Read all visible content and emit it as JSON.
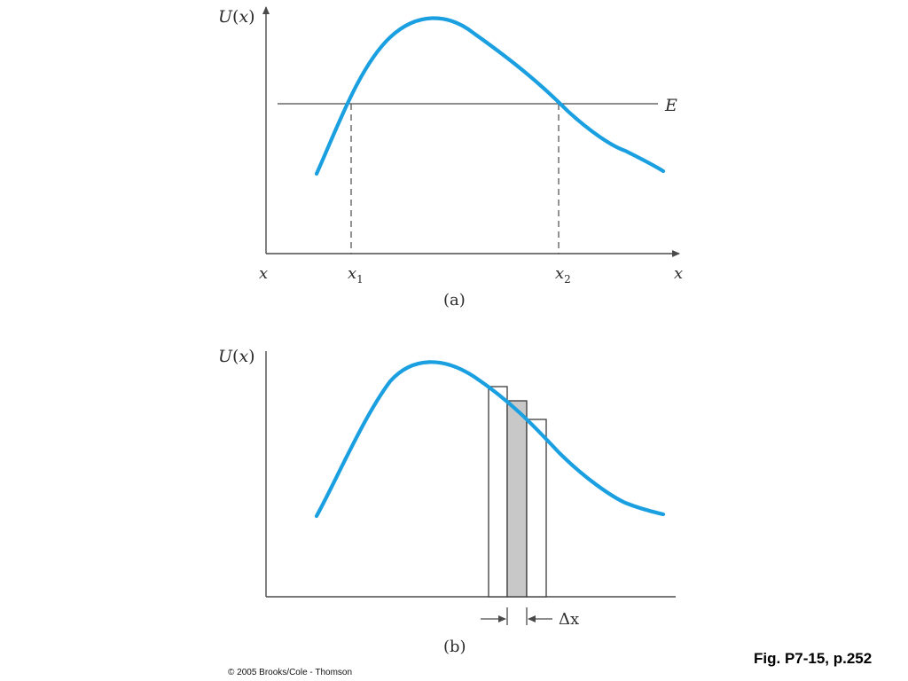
{
  "panel_a": {
    "y_axis_label": "U(x)",
    "x_axis_left_label": "x",
    "x_axis_right_label": "x",
    "energy_label": "E",
    "x1_label": "x",
    "x1_sub": "1",
    "x2_label": "x",
    "x2_sub": "2",
    "caption": "(a)"
  },
  "panel_b": {
    "y_axis_label": "U(x)",
    "delta_label": "Δx",
    "caption": "(b)"
  },
  "figure_caption": "Fig. P7-15, p.252",
  "copyright": "© 2005 Brooks/Cole - Thomson",
  "colors": {
    "curve": "#1a9fe0",
    "shaded_strip": "#c8c8c8",
    "axes": "#4a4a4a"
  }
}
